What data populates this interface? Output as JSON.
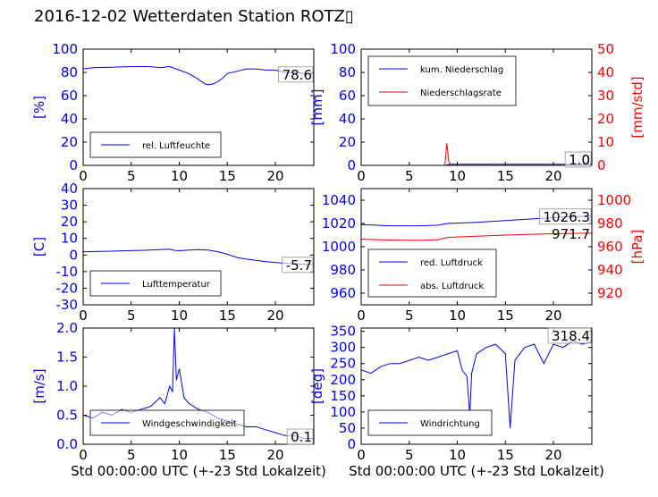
{
  "figure": {
    "title": "2016-12-02 Wetterdaten Station ROTZ▯",
    "xlabel": "Std 00:00:00 UTC (+-23 Std Lokalzeit)"
  },
  "colors": {
    "primary": "#0000ff",
    "secondary": "#ff0000",
    "axes": "#000000"
  },
  "chart_data": [
    {
      "type": "line",
      "ylabel": "[%]",
      "xlim": [
        0,
        24
      ],
      "ylim": [
        0,
        100
      ],
      "xticks": [
        0,
        5,
        10,
        15,
        20
      ],
      "yticks": [
        0,
        20,
        40,
        60,
        80,
        100
      ],
      "series": [
        {
          "name": "rel. Luftfeuchte",
          "color": "#0000ff",
          "x": [
            0,
            1,
            3,
            5,
            7,
            8,
            9,
            10,
            11,
            12,
            12.7,
            13,
            13.5,
            14,
            14.5,
            15,
            16,
            17,
            18,
            19,
            20,
            21,
            22,
            23,
            24
          ],
          "values": [
            83,
            84,
            84.5,
            85,
            85,
            84,
            85,
            82,
            79,
            74,
            70,
            69.5,
            70,
            72,
            75,
            79,
            81,
            83,
            83,
            82,
            82,
            80,
            80,
            79,
            78.6
          ]
        }
      ],
      "last_value": "78.6",
      "legend": "lower-left"
    },
    {
      "type": "line",
      "ylabel": "[mm]",
      "ylabel2": "[mm/std]",
      "xlim": [
        0,
        24
      ],
      "ylim": [
        0,
        100
      ],
      "ylim2": [
        0,
        50
      ],
      "xticks": [
        0,
        5,
        10,
        15,
        20
      ],
      "yticks": [
        0,
        20,
        40,
        60,
        80,
        100
      ],
      "yticks2": [
        0,
        10,
        20,
        30,
        40,
        50
      ],
      "series": [
        {
          "name": "kum. Niederschlag",
          "color": "#0000ff",
          "axis": "left",
          "x": [
            0,
            8.8,
            9.0,
            9.2,
            9.5,
            24
          ],
          "values": [
            0,
            0,
            0.6,
            1.0,
            1.0,
            1.0
          ]
        },
        {
          "name": "Niederschlagsrate",
          "color": "#ff0000",
          "axis": "right",
          "x": [
            0,
            8.7,
            8.8,
            8.9,
            9.0,
            9.1,
            9.3,
            24
          ],
          "values": [
            0,
            0,
            4,
            9.5,
            6,
            2,
            0,
            0
          ]
        }
      ],
      "last_value": "1.0",
      "last_value2": "0",
      "legend": "top-left"
    },
    {
      "type": "line",
      "ylabel": "[C]",
      "xlim": [
        0,
        24
      ],
      "ylim": [
        -30,
        40
      ],
      "xticks": [
        0,
        5,
        10,
        15,
        20
      ],
      "yticks": [
        -30,
        -20,
        -10,
        0,
        10,
        20,
        30,
        40
      ],
      "series": [
        {
          "name": "Lufttemperatur",
          "color": "#0000ff",
          "x": [
            0,
            2,
            4,
            6,
            8,
            9,
            9.5,
            10,
            11,
            12,
            13,
            14,
            15,
            16,
            17,
            18,
            19,
            20,
            21,
            22,
            23,
            24
          ],
          "values": [
            2,
            2.2,
            2.5,
            2.8,
            3.2,
            3.5,
            2.8,
            2.6,
            3.0,
            3.2,
            3.0,
            2.0,
            0.5,
            -1.5,
            -2.5,
            -3.2,
            -4.0,
            -4.5,
            -5.0,
            -5.3,
            -5.5,
            -5.7
          ]
        }
      ],
      "last_value": "-5.7",
      "legend": "lower-left"
    },
    {
      "type": "line",
      "ylabel2": "[hPa]",
      "xlim": [
        0,
        24
      ],
      "ylim": [
        950,
        1050
      ],
      "ylim2": [
        910,
        1010
      ],
      "xticks": [
        0,
        5,
        10,
        15,
        20
      ],
      "yticks": [
        960,
        980,
        1000,
        1020,
        1040
      ],
      "yticks2": [
        920,
        940,
        960,
        980,
        1000
      ],
      "series": [
        {
          "name": "red. Luftdruck",
          "color": "#0000ff",
          "axis": "left",
          "x": [
            0,
            3,
            6,
            8,
            9,
            12,
            15,
            18,
            21,
            24
          ],
          "values": [
            1019,
            1018,
            1018,
            1018.5,
            1020,
            1021,
            1022.5,
            1024,
            1025.5,
            1026.3
          ]
        },
        {
          "name": "abs. Luftdruck",
          "color": "#ff0000",
          "axis": "right",
          "x": [
            0,
            3,
            6,
            8,
            9,
            12,
            15,
            18,
            21,
            24
          ],
          "values": [
            966.5,
            965.8,
            965.5,
            966,
            968,
            969,
            970,
            970.8,
            971.3,
            971.7
          ]
        }
      ],
      "last_value": "1026.3",
      "last_value2": "971.7",
      "legend": "lower-left"
    },
    {
      "type": "line",
      "ylabel": "[m/s]",
      "xlabel": "Std 00:00:00 UTC (+-23 Std Lokalzeit)",
      "xlim": [
        0,
        24
      ],
      "ylim": [
        0,
        2
      ],
      "xticks": [
        0,
        5,
        10,
        15,
        20
      ],
      "yticks": [
        0.0,
        0.5,
        1.0,
        1.5,
        2.0
      ],
      "series": [
        {
          "name": "Windgeschwindigkeit",
          "color": "#0000ff",
          "x": [
            0,
            1,
            2,
            3,
            4,
            5,
            6,
            7,
            8,
            8.5,
            9,
            9.3,
            9.5,
            9.7,
            10,
            10.5,
            11,
            12,
            13,
            14,
            15,
            16,
            17,
            18,
            19,
            20,
            21,
            22,
            23,
            24
          ],
          "values": [
            0.5,
            0.45,
            0.55,
            0.5,
            0.6,
            0.55,
            0.6,
            0.65,
            0.8,
            0.7,
            1.0,
            0.9,
            2.0,
            1.1,
            1.3,
            0.8,
            0.7,
            0.6,
            0.55,
            0.45,
            0.4,
            0.35,
            0.3,
            0.3,
            0.25,
            0.2,
            0.15,
            0.15,
            0.1,
            0.1
          ]
        }
      ],
      "last_value": "0.1",
      "legend": "lower-center"
    },
    {
      "type": "line",
      "ylabel": "[deg]",
      "xlabel": "Std 00:00:00 UTC (+-23 Std Lokalzeit)",
      "xlim": [
        0,
        24
      ],
      "ylim": [
        0,
        360
      ],
      "xticks": [
        0,
        5,
        10,
        15,
        20
      ],
      "yticks": [
        0,
        50,
        100,
        150,
        200,
        250,
        300,
        350
      ],
      "series": [
        {
          "name": "Windrichtung",
          "color": "#0000ff",
          "x": [
            0,
            1,
            2,
            3,
            4,
            5,
            6,
            7,
            8,
            9,
            10,
            10.5,
            11,
            11.3,
            11.5,
            12,
            13,
            14,
            15,
            15.5,
            16,
            17,
            18,
            19,
            20,
            21,
            22,
            23,
            24
          ],
          "values": [
            230,
            220,
            240,
            250,
            250,
            260,
            270,
            260,
            270,
            280,
            290,
            230,
            210,
            90,
            220,
            280,
            300,
            310,
            280,
            50,
            260,
            300,
            310,
            250,
            310,
            300,
            320,
            310,
            318.4
          ]
        }
      ],
      "last_value": "318.4",
      "legend": "lower-left"
    }
  ]
}
